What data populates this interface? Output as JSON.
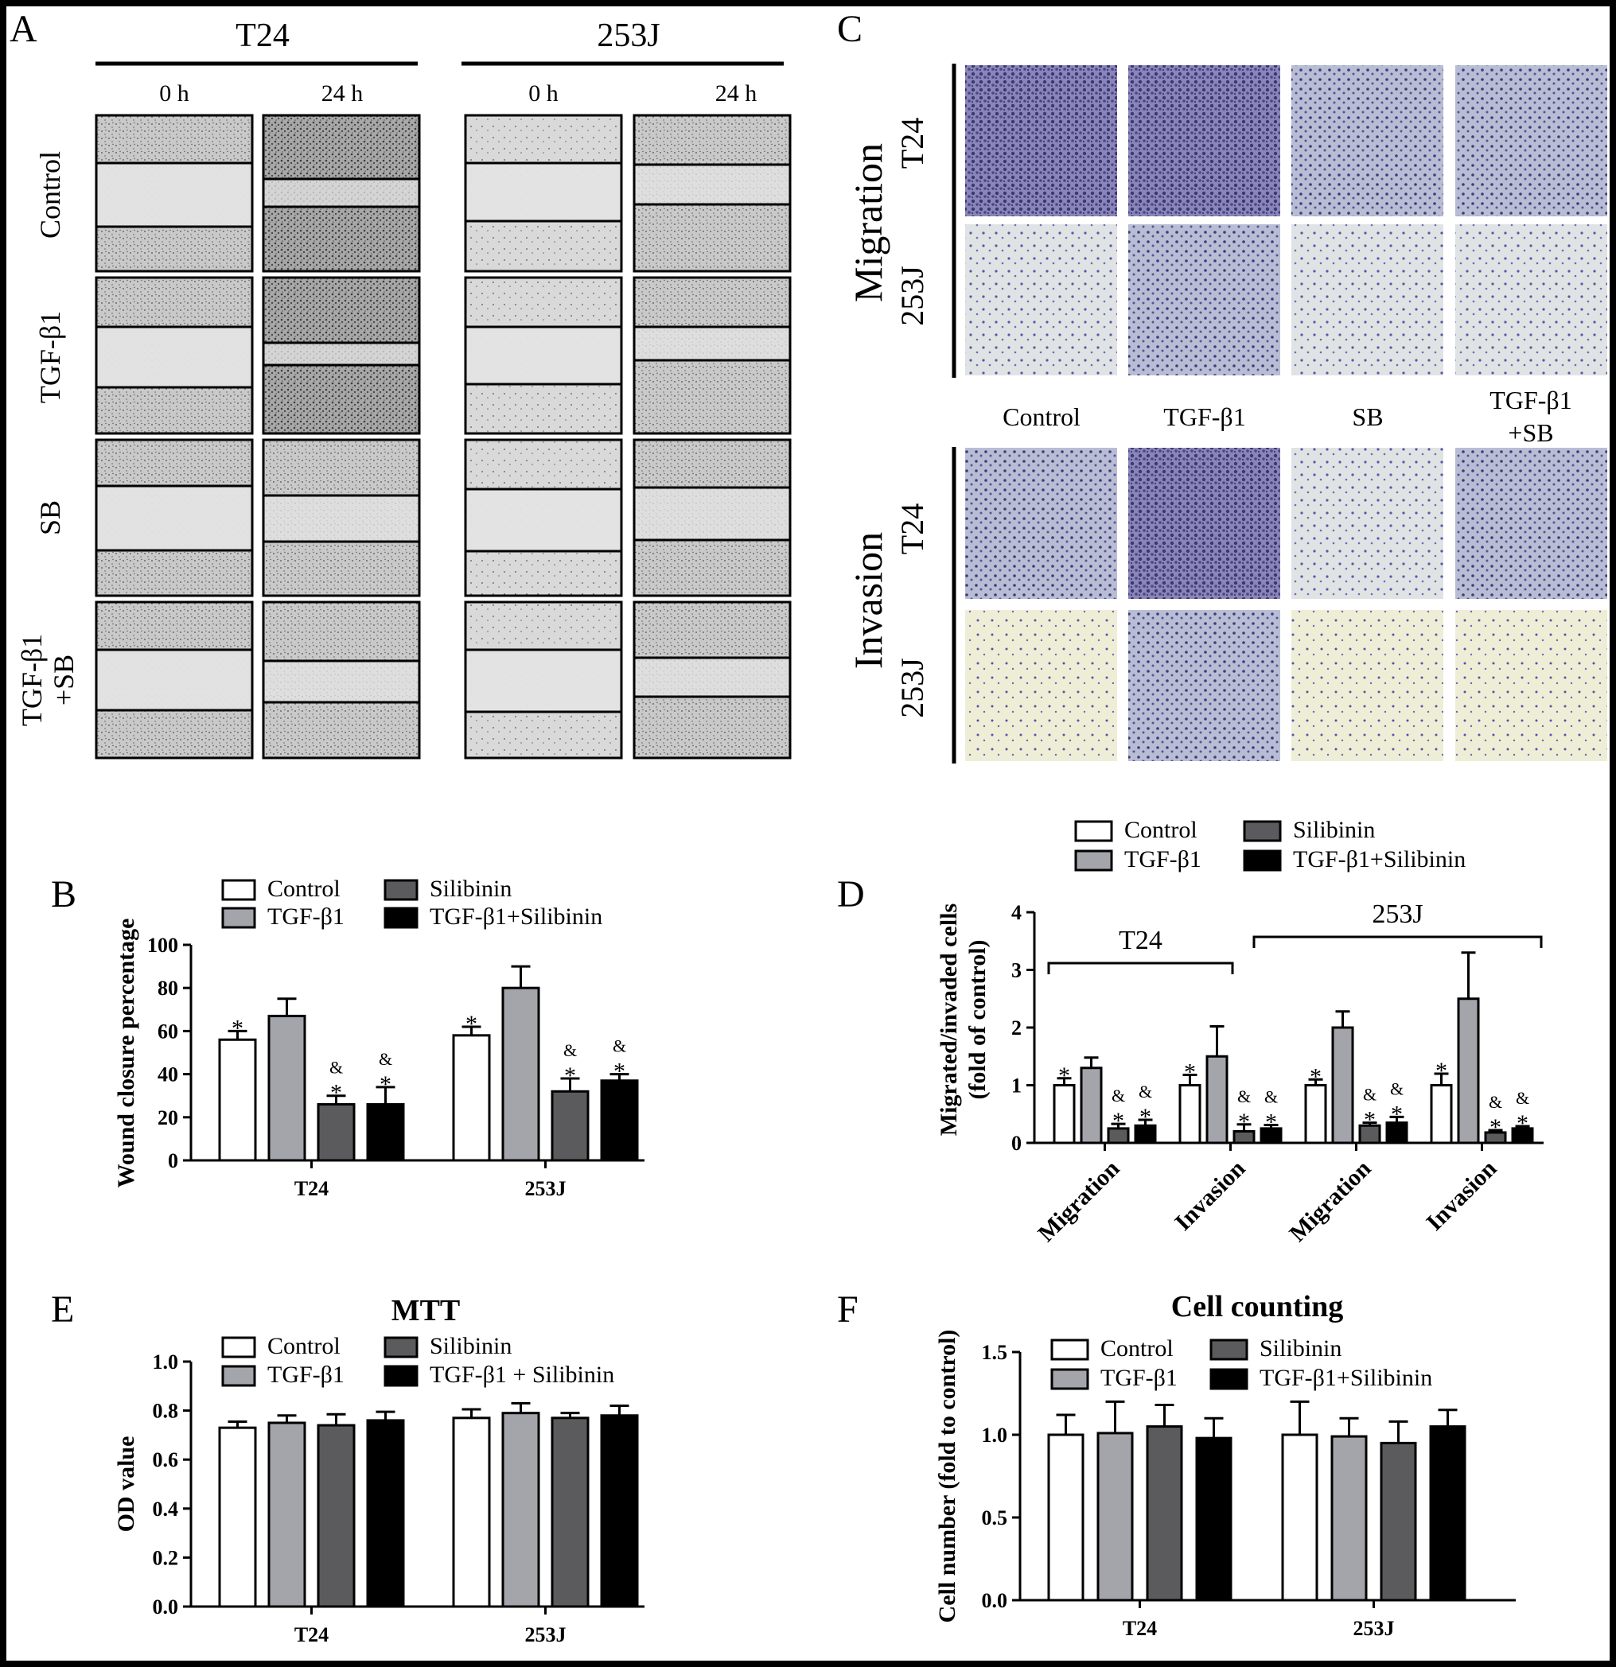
{
  "panel_letters": {
    "A": "A",
    "B": "B",
    "C": "C",
    "D": "D",
    "E": "E",
    "F": "F"
  },
  "panelA": {
    "groups": [
      "T24",
      "253J"
    ],
    "times": [
      "0 h",
      "24 h"
    ],
    "rows": [
      "Control",
      "TGF-β1",
      "SB",
      "TGF-β1",
      "+SB"
    ]
  },
  "panelC": {
    "sections": [
      "Migration",
      "Invasion"
    ],
    "cells": [
      "T24",
      "253J"
    ],
    "columns": [
      "Control",
      "TGF-β1",
      "SB",
      "TGF-β1",
      "+SB"
    ]
  },
  "legend_labels": [
    "Control",
    "TGF-β1",
    "Silibinin",
    "TGF-β1+Silibinin"
  ],
  "legend_labels_E": [
    "Control",
    "TGF-β1",
    "Silibinin",
    "TGF-β1  + Silibinin"
  ],
  "colors": {
    "control": "#ffffff",
    "tgf": "#a4a4ab",
    "silibinin": "#5b5b5e",
    "tgf_silibinin": "#000000"
  },
  "chart_data": [
    {
      "panel": "B",
      "type": "bar",
      "title": "",
      "xlabel": "",
      "ylabel": "Wound closure percentage",
      "ylim": [
        0,
        100
      ],
      "yticks": [
        "0",
        "20",
        "40",
        "60",
        "80",
        "100"
      ],
      "categories": [
        "T24",
        "253J"
      ],
      "series": [
        {
          "name": "Control",
          "values": [
            56,
            58
          ],
          "errors": [
            4,
            4
          ],
          "marks": [
            "*",
            "*"
          ]
        },
        {
          "name": "TGF-β1",
          "values": [
            67,
            80
          ],
          "errors": [
            8,
            10
          ],
          "marks": [
            "",
            ""
          ]
        },
        {
          "name": "Silibinin",
          "values": [
            26,
            32
          ],
          "errors": [
            4,
            6
          ],
          "marks": [
            "&\n*",
            "&\n*"
          ]
        },
        {
          "name": "TGF-β1+Silibinin",
          "values": [
            26,
            37
          ],
          "errors": [
            8,
            3
          ],
          "marks": [
            "&\n*",
            "&\n*"
          ]
        }
      ]
    },
    {
      "panel": "D",
      "type": "bar",
      "title": "",
      "xlabel": "",
      "ylabel": "Migrated/invaded cells (fold of control)",
      "ylim": [
        0,
        4
      ],
      "yticks": [
        "0",
        "1",
        "2",
        "3",
        "4"
      ],
      "categories": [
        "Migration",
        "Invasion",
        "Migration",
        "Invasion"
      ],
      "brackets": [
        "T24",
        "253J"
      ],
      "series": [
        {
          "name": "Control",
          "values": [
            1.0,
            1.0,
            1.0,
            1.0
          ],
          "errors": [
            0.12,
            0.18,
            0.1,
            0.2
          ],
          "marks": [
            "*",
            "*",
            "*",
            "*"
          ]
        },
        {
          "name": "TGF-β1",
          "values": [
            1.3,
            1.5,
            2.0,
            2.5
          ],
          "errors": [
            0.18,
            0.52,
            0.28,
            0.8
          ],
          "marks": [
            "",
            "",
            "",
            ""
          ]
        },
        {
          "name": "Silibinin",
          "values": [
            0.25,
            0.2,
            0.3,
            0.18
          ],
          "errors": [
            0.08,
            0.12,
            0.05,
            0.04
          ],
          "marks": [
            "&\n*",
            "&\n*",
            "&\n*",
            "&\n*"
          ]
        },
        {
          "name": "TGF-β1+Silibinin",
          "values": [
            0.3,
            0.25,
            0.35,
            0.25
          ],
          "errors": [
            0.1,
            0.06,
            0.1,
            0.04
          ],
          "marks": [
            "&\n*",
            "&\n*",
            "&\n*",
            "&\n*"
          ]
        }
      ]
    },
    {
      "panel": "E",
      "type": "bar",
      "title": "MTT",
      "xlabel": "",
      "ylabel": "OD value",
      "ylim": [
        0,
        1.0
      ],
      "yticks": [
        "0.0",
        "0.2",
        "0.4",
        "0.6",
        "0.8",
        "1.0"
      ],
      "categories": [
        "T24",
        "253J"
      ],
      "series": [
        {
          "name": "Control",
          "values": [
            0.73,
            0.77
          ],
          "errors": [
            0.025,
            0.035
          ]
        },
        {
          "name": "TGF-β1",
          "values": [
            0.75,
            0.79
          ],
          "errors": [
            0.03,
            0.04
          ]
        },
        {
          "name": "Silibinin",
          "values": [
            0.74,
            0.77
          ],
          "errors": [
            0.045,
            0.02
          ]
        },
        {
          "name": "TGF-β1 + Silibinin",
          "values": [
            0.76,
            0.78
          ],
          "errors": [
            0.035,
            0.04
          ]
        }
      ]
    },
    {
      "panel": "F",
      "type": "bar",
      "title": "Cell counting",
      "xlabel": "",
      "ylabel": "Cell number (fold to control)",
      "ylim": [
        0,
        1.5
      ],
      "yticks": [
        "0.0",
        "0.5",
        "1.0",
        "1.5"
      ],
      "categories": [
        "T24",
        "253J"
      ],
      "series": [
        {
          "name": "Control",
          "values": [
            1.0,
            1.0
          ],
          "errors": [
            0.12,
            0.2
          ]
        },
        {
          "name": "TGF-β1",
          "values": [
            1.01,
            0.99
          ],
          "errors": [
            0.19,
            0.11
          ]
        },
        {
          "name": "Silibinin",
          "values": [
            1.05,
            0.95
          ],
          "errors": [
            0.13,
            0.13
          ]
        },
        {
          "name": "TGF-β1+Silibinin",
          "values": [
            0.98,
            1.05
          ],
          "errors": [
            0.12,
            0.1
          ]
        }
      ]
    }
  ]
}
